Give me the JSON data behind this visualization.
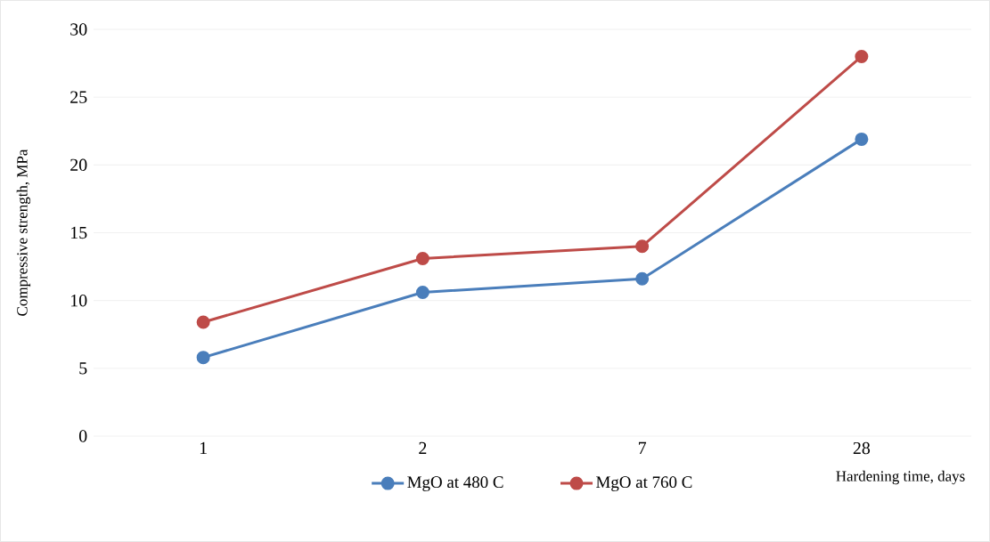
{
  "chart_data": {
    "type": "line",
    "xlabel": "Hardening time, days",
    "ylabel": "Compressive strength, MPa",
    "categories": [
      "1",
      "2",
      "7",
      "28"
    ],
    "series": [
      {
        "name": "MgO at 480 C",
        "color": "#4a7ebb",
        "values": [
          5.8,
          10.6,
          11.6,
          21.9
        ]
      },
      {
        "name": "MgO at 760 C",
        "color": "#be4b48",
        "values": [
          8.4,
          13.1,
          14.0,
          28.0
        ]
      }
    ],
    "ylim": [
      0,
      30
    ],
    "yticks": [
      0,
      5,
      10,
      15,
      20,
      25,
      30
    ],
    "grid": "y",
    "legend": "bottom",
    "marker": "circle",
    "line_style": "solid"
  }
}
